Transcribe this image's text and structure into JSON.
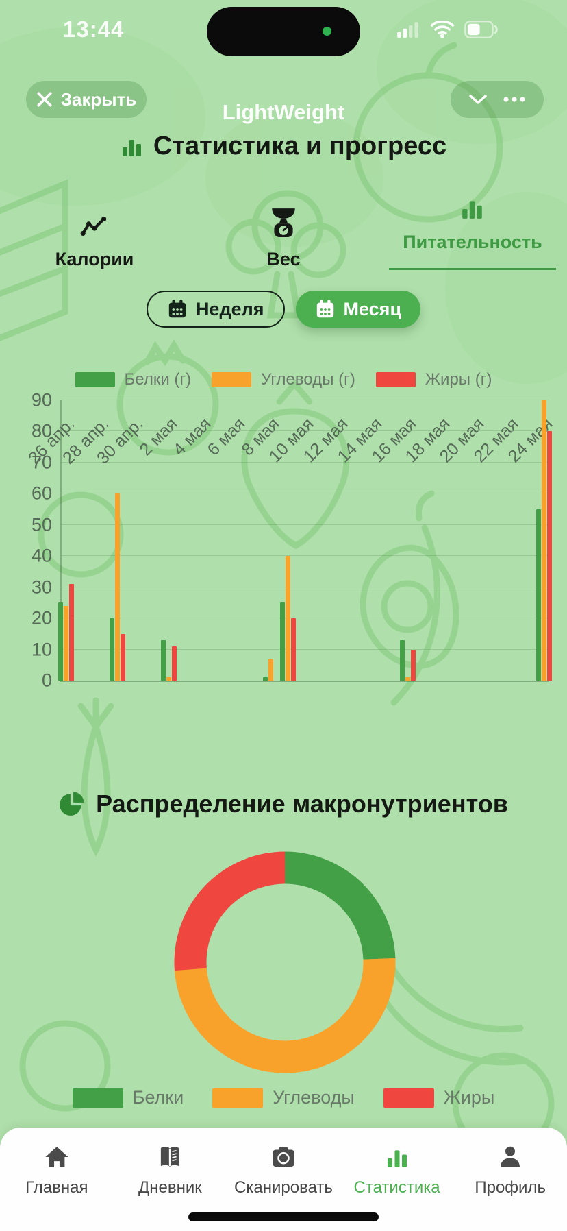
{
  "status_bar": {
    "time": "13:44"
  },
  "titlebar": {
    "app_title": "LightWeight",
    "close_label": "Закрыть"
  },
  "page": {
    "title": "Статистика и прогресс"
  },
  "tabs": [
    {
      "label": "Калории",
      "icon": "trend-line",
      "active": false
    },
    {
      "label": "Вес",
      "icon": "scale",
      "active": false
    },
    {
      "label": "Питательность",
      "icon": "bar-chart",
      "active": true
    }
  ],
  "period_toggle": [
    {
      "label": "Неделя",
      "icon": "calendar",
      "active": false
    },
    {
      "label": "Месяц",
      "icon": "calendar",
      "active": true
    }
  ],
  "colors": {
    "background": "#AFDFAA",
    "protein_green": "#43A047",
    "carbs_orange": "#F9A22B",
    "fat_red": "#EF4640",
    "accent": "#4CAF50"
  },
  "chart_data": [
    {
      "type": "bar",
      "title": "",
      "ylabel": "",
      "xlabel": "",
      "ylim": [
        0,
        90
      ],
      "ytick_step": 10,
      "grid": true,
      "legend_position": "top",
      "legend": [
        {
          "label": "Белки (г)",
          "color": "#43A047"
        },
        {
          "label": "Углеводы (г)",
          "color": "#F9A22B"
        },
        {
          "label": "Жиры (г)",
          "color": "#EF4640"
        }
      ],
      "x_tick_labels": [
        "26 апр.",
        "28 апр.",
        "30 апр.",
        "2 мая",
        "4 мая",
        "6 мая",
        "8 мая",
        "10 мая",
        "12 мая",
        "14 мая",
        "16 мая",
        "18 мая",
        "20 мая",
        "22 мая",
        "24 мая"
      ],
      "day_count": 29,
      "series": [
        {
          "name": "Белки (г)",
          "color": "#43A047",
          "points": [
            [
              0,
              25
            ],
            [
              3,
              20
            ],
            [
              6,
              13
            ],
            [
              12,
              1
            ],
            [
              13,
              25
            ],
            [
              20,
              13
            ],
            [
              28,
              55
            ]
          ]
        },
        {
          "name": "Углеводы (г)",
          "color": "#F9A22B",
          "points": [
            [
              0,
              24
            ],
            [
              3,
              60
            ],
            [
              6,
              1
            ],
            [
              12,
              7
            ],
            [
              13,
              40
            ],
            [
              20,
              1
            ],
            [
              28,
              90
            ]
          ]
        },
        {
          "name": "Жиры (г)",
          "color": "#EF4640",
          "points": [
            [
              0,
              31
            ],
            [
              3,
              15
            ],
            [
              6,
              11
            ],
            [
              12,
              0
            ],
            [
              13,
              20
            ],
            [
              20,
              10
            ],
            [
              28,
              80
            ]
          ]
        }
      ]
    },
    {
      "type": "pie",
      "title": "Распределение макронутриентов",
      "donut": true,
      "legend_position": "bottom",
      "segments": [
        {
          "label": "Белки",
          "value": 24.4,
          "color": "#43A047"
        },
        {
          "label": "Углеводы",
          "value": 49.4,
          "color": "#F9A22B"
        },
        {
          "label": "Жиры",
          "value": 26.2,
          "color": "#EF4640"
        }
      ]
    }
  ],
  "bottom_nav": {
    "items": [
      {
        "label": "Главная",
        "icon": "home",
        "active": false
      },
      {
        "label": "Дневник",
        "icon": "book",
        "active": false
      },
      {
        "label": "Сканировать",
        "icon": "camera",
        "active": false
      },
      {
        "label": "Статистика",
        "icon": "bar-chart",
        "active": true
      },
      {
        "label": "Профиль",
        "icon": "person",
        "active": false
      }
    ]
  }
}
